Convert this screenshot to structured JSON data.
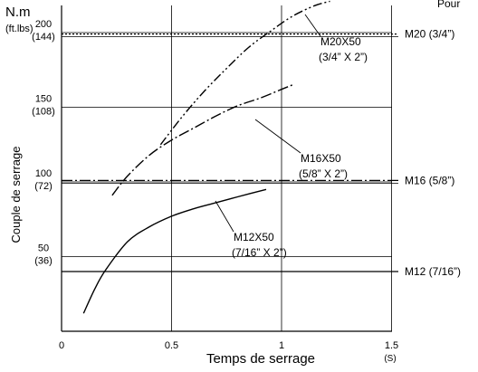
{
  "header": {
    "corner_text": "Pour"
  },
  "chart_data": {
    "type": "line",
    "ylabel": "Couple de serrage",
    "xlabel": "Temps de serrage",
    "xunit": "(S)",
    "yunit": "N.m",
    "yunit2": "(ft.lbs)",
    "xlim": [
      0,
      1.5
    ],
    "ylim": [
      0,
      220
    ],
    "xticks": [
      {
        "v": 0,
        "label": "0"
      },
      {
        "v": 0.5,
        "label": "0.5"
      },
      {
        "v": 1,
        "label": "1"
      },
      {
        "v": 1.5,
        "label": "1.5"
      }
    ],
    "yticks": [
      {
        "v": 50,
        "label": "50",
        "label2": "(36)"
      },
      {
        "v": 100,
        "label": "100",
        "label2": "(72)"
      },
      {
        "v": 150,
        "label": "150",
        "label2": "(108)"
      },
      {
        "v": 200,
        "label": "200",
        "label2": "(144)"
      }
    ],
    "reference_lines": [
      {
        "label": "M20 (3/4”)",
        "y": 199,
        "style": "dotted"
      },
      {
        "label": "M16 (5/8”)",
        "y": 101,
        "style": "dashdot"
      },
      {
        "label": "M12 (7/16”)",
        "y": 40,
        "style": "solid"
      }
    ],
    "series": [
      {
        "name": "M20X50",
        "name2": "(3/4” X 2”)",
        "style": "dashdotdot",
        "x": [
          0.45,
          0.55,
          0.65,
          0.75,
          0.85,
          0.95,
          1.05,
          1.15,
          1.22
        ],
        "y": [
          125,
          144,
          161,
          176,
          190,
          201,
          211,
          218,
          221
        ]
      },
      {
        "name": "M16X50",
        "name2": "(5/8” X 2”)",
        "style": "dashdot",
        "x": [
          0.23,
          0.3,
          0.4,
          0.5,
          0.6,
          0.7,
          0.8,
          0.9,
          1.0,
          1.05
        ],
        "y": [
          91,
          104,
          118,
          128,
          136,
          144,
          151,
          156,
          162,
          165
        ]
      },
      {
        "name": "M12X50",
        "name2": "(7/16” X 2”)",
        "style": "solid",
        "x": [
          0.1,
          0.15,
          0.2,
          0.3,
          0.4,
          0.5,
          0.6,
          0.7,
          0.8,
          0.93
        ],
        "y": [
          12,
          28,
          41,
          60,
          70,
          77,
          82,
          86,
          90,
          95
        ]
      }
    ]
  }
}
